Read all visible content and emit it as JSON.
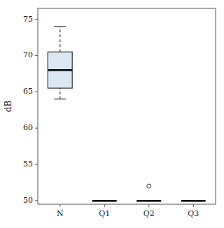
{
  "chart_data": {
    "type": "box",
    "categories": [
      "N",
      "Q1",
      "Q2",
      "Q3"
    ],
    "boxes": [
      {
        "q1": 65.5,
        "median": 68.0,
        "q3": 70.5,
        "whislo": 64.0,
        "whishi": 74.0,
        "fliers": []
      },
      {
        "q1": 49.97,
        "median": 49.97,
        "q3": 49.97,
        "whislo": 49.97,
        "whishi": 49.97,
        "fliers": []
      },
      {
        "q1": 49.97,
        "median": 49.97,
        "q3": 49.97,
        "whislo": 49.97,
        "whishi": 49.97,
        "fliers": [
          52.0
        ]
      },
      {
        "q1": 49.97,
        "median": 49.97,
        "q3": 49.97,
        "whislo": 49.97,
        "whishi": 49.97,
        "fliers": []
      }
    ],
    "ylabel": "dB",
    "ylim": [
      49.5,
      76.5
    ],
    "yticks": [
      50,
      55,
      60,
      65,
      70,
      75
    ],
    "marker": "circle",
    "grid": false
  }
}
